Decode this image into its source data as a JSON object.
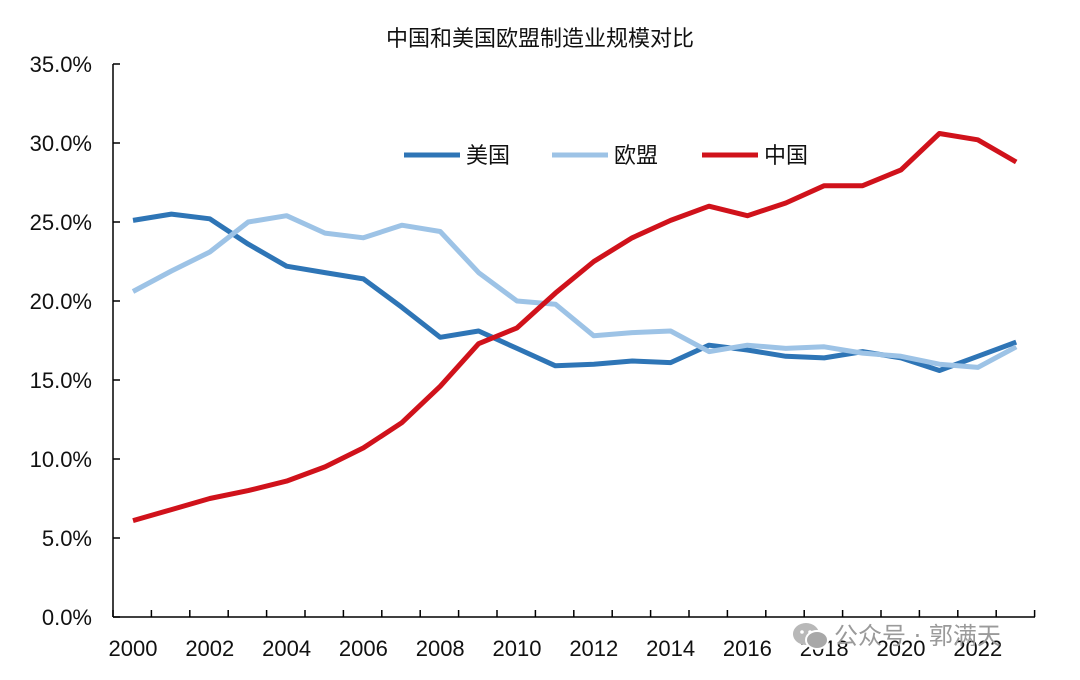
{
  "chart_data": {
    "type": "line",
    "title": "中国和美国欧盟制造业规模对比",
    "xlabel": "",
    "ylabel": "",
    "ylim": [
      0,
      35
    ],
    "y_ticks": [
      "0.0%",
      "5.0%",
      "10.0%",
      "15.0%",
      "20.0%",
      "25.0%",
      "30.0%",
      "35.0%"
    ],
    "x_tick_labels": [
      "2000",
      "2002",
      "2004",
      "2006",
      "2008",
      "2010",
      "2012",
      "2014",
      "2016",
      "2018",
      "2020",
      "2022"
    ],
    "x": [
      2000,
      2001,
      2002,
      2003,
      2004,
      2005,
      2006,
      2007,
      2008,
      2009,
      2010,
      2011,
      2012,
      2013,
      2014,
      2015,
      2016,
      2017,
      2018,
      2019,
      2020,
      2021,
      2022,
      2023
    ],
    "legend_position": "top",
    "series": [
      {
        "name": "美国",
        "color": "#2E75B6",
        "values": [
          25.1,
          25.5,
          25.2,
          23.6,
          22.2,
          21.8,
          21.4,
          19.6,
          17.7,
          18.1,
          17.0,
          15.9,
          16.0,
          16.2,
          16.1,
          17.2,
          16.9,
          16.5,
          16.4,
          16.8,
          16.4,
          15.6,
          16.5,
          17.4
        ]
      },
      {
        "name": "欧盟",
        "color": "#9DC3E6",
        "values": [
          20.6,
          21.9,
          23.1,
          25.0,
          25.4,
          24.3,
          24.0,
          24.8,
          24.4,
          21.8,
          20.0,
          19.8,
          17.8,
          18.0,
          18.1,
          16.8,
          17.2,
          17.0,
          17.1,
          16.7,
          16.5,
          16.0,
          15.8,
          17.1
        ]
      },
      {
        "name": "中国",
        "color": "#D0121B",
        "values": [
          6.1,
          6.8,
          7.5,
          8.0,
          8.6,
          9.5,
          10.7,
          12.3,
          14.6,
          17.3,
          18.3,
          20.5,
          22.5,
          24.0,
          25.1,
          26.0,
          25.4,
          26.2,
          27.3,
          27.3,
          28.3,
          30.6,
          30.2,
          28.8
        ]
      }
    ]
  },
  "watermark": {
    "text": "公众号 · 郭满天",
    "icon": "wechat-icon"
  }
}
